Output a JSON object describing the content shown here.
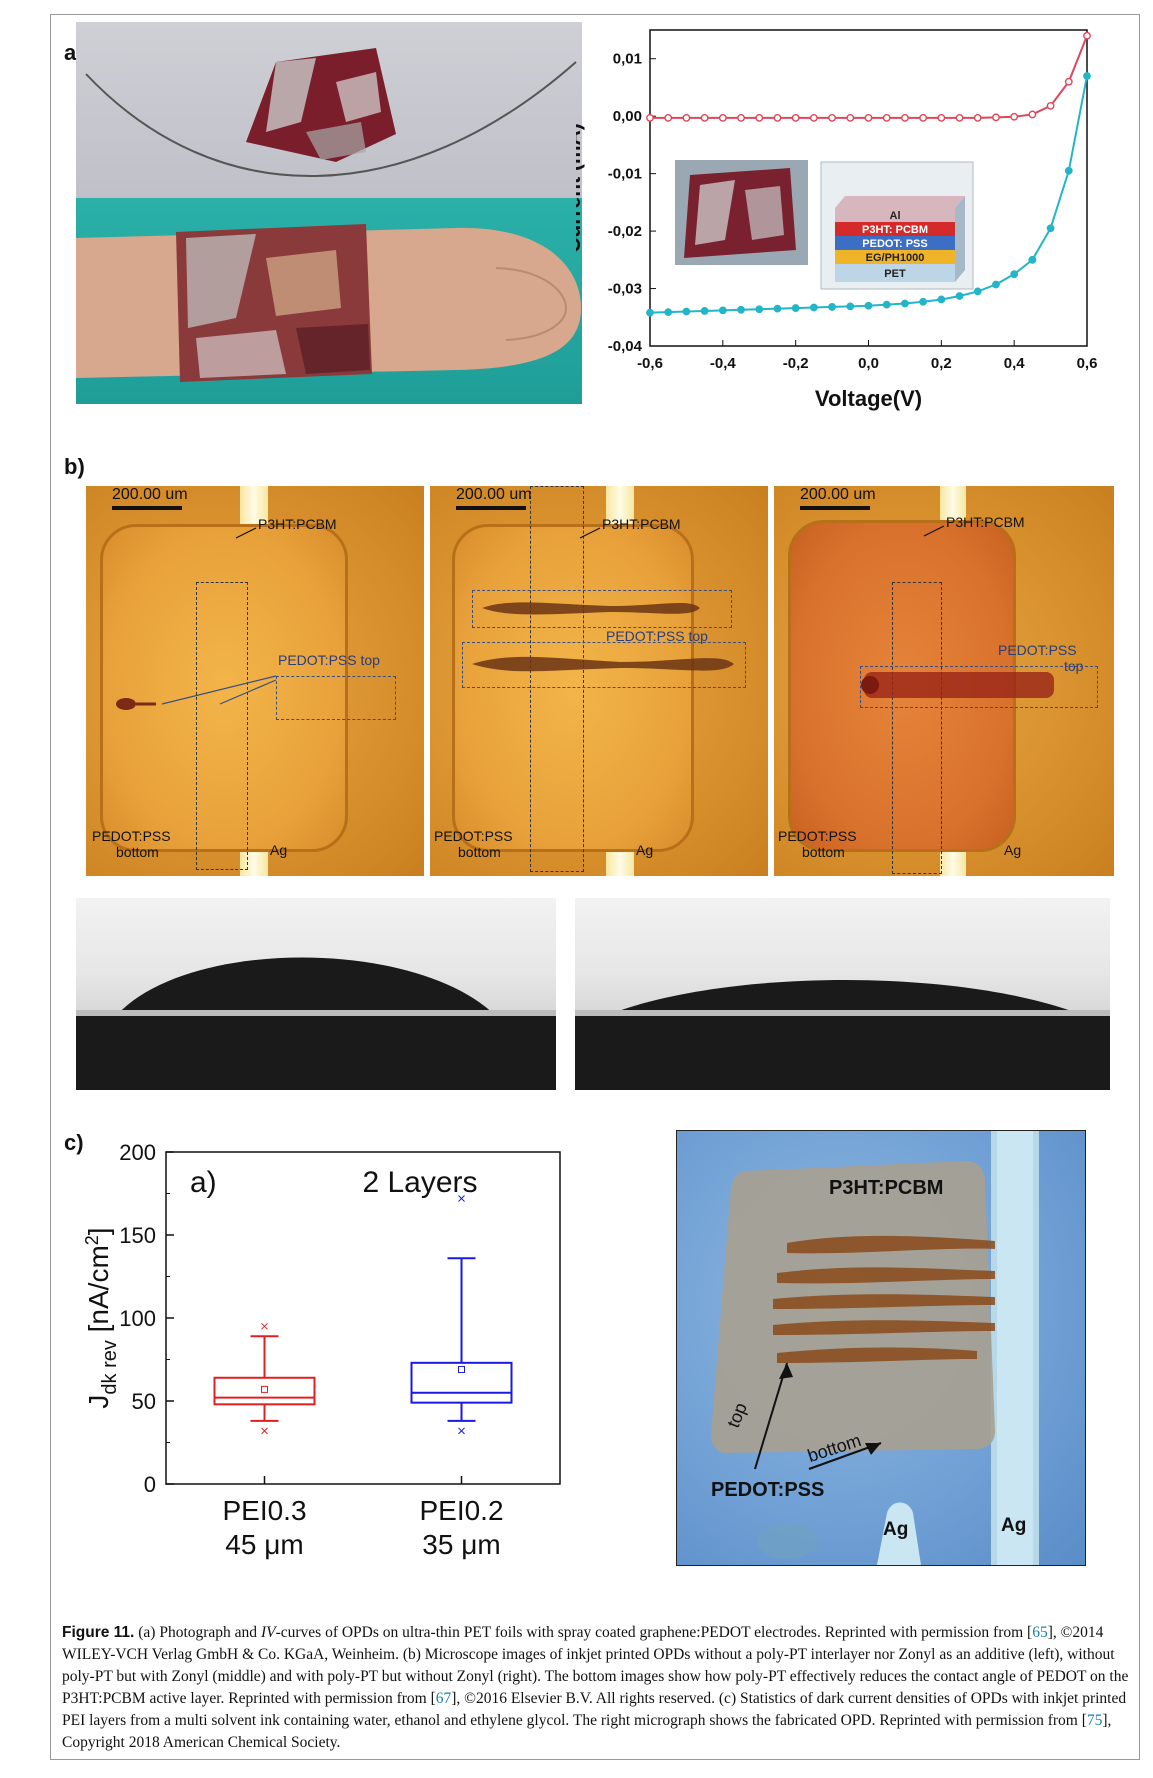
{
  "panels": {
    "a": "a)",
    "b": "b)",
    "c": "c)"
  },
  "iv_chart": {
    "chart_data": {
      "type": "line",
      "xlabel": "Voltage(V)",
      "ylabel": "Current (mA)",
      "xlim": [
        -0.6,
        0.6
      ],
      "ylim": [
        -0.04,
        0.015
      ],
      "x_ticks": [
        "-0,6",
        "-0,4",
        "-0,2",
        "0,0",
        "0,2",
        "0,4",
        "0,6"
      ],
      "y_ticks": [
        "0,01",
        "0,00",
        "-0,01",
        "-0,02",
        "-0,03",
        "-0,04"
      ],
      "series": [
        {
          "color": "#e0455a",
          "marker": "open-circle",
          "x": [
            -0.6,
            -0.55,
            -0.5,
            -0.45,
            -0.4,
            -0.35,
            -0.3,
            -0.25,
            -0.2,
            -0.15,
            -0.1,
            -0.05,
            0.0,
            0.05,
            0.1,
            0.15,
            0.2,
            0.25,
            0.3,
            0.35,
            0.4,
            0.45,
            0.5,
            0.55,
            0.6
          ],
          "y": [
            -0.0003,
            -0.0003,
            -0.0003,
            -0.0003,
            -0.0003,
            -0.0003,
            -0.0003,
            -0.0003,
            -0.0003,
            -0.0003,
            -0.0003,
            -0.0003,
            -0.0003,
            -0.0003,
            -0.0003,
            -0.0003,
            -0.0003,
            -0.0003,
            -0.0003,
            -0.0002,
            -0.0001,
            0.0003,
            0.0018,
            0.006,
            0.014
          ]
        },
        {
          "color": "#23b5c8",
          "marker": "filled-circle",
          "x": [
            -0.6,
            -0.55,
            -0.5,
            -0.45,
            -0.4,
            -0.35,
            -0.3,
            -0.25,
            -0.2,
            -0.15,
            -0.1,
            -0.05,
            0.0,
            0.05,
            0.1,
            0.15,
            0.2,
            0.25,
            0.3,
            0.35,
            0.4,
            0.45,
            0.5,
            0.55,
            0.6
          ],
          "y": [
            -0.0342,
            -0.0341,
            -0.034,
            -0.0339,
            -0.0338,
            -0.0337,
            -0.0336,
            -0.0335,
            -0.0334,
            -0.0333,
            -0.0332,
            -0.0331,
            -0.033,
            -0.0328,
            -0.0326,
            -0.0323,
            -0.0319,
            -0.0313,
            -0.0305,
            -0.0293,
            -0.0275,
            -0.025,
            -0.0195,
            -0.0095,
            0.007
          ]
        }
      ]
    },
    "stack_layers": [
      "Al",
      "P3HT: PCBM",
      "PEDOT: PSS",
      "EG/PH1000",
      "PET"
    ]
  },
  "micro": {
    "scale": "200.00 um",
    "p3ht": "P3HT:PCBM",
    "pedot_top": "PEDOT:PSS top",
    "pedot_top_1": "PEDOT:PSS",
    "pedot_top_2": "top",
    "pedot_bottom_1": "PEDOT:PSS",
    "pedot_bottom_2": "bottom",
    "ag": "Ag"
  },
  "box_chart": {
    "chart_data": {
      "type": "box",
      "title": "2 Layers",
      "inner_label": "a)",
      "ylabel_main": "J",
      "ylabel_sub": "dk rev",
      "ylabel_unit": "[nA/cm",
      "ylabel_sup": "2",
      "ylabel_close": "]",
      "ylim": [
        0,
        200
      ],
      "y_ticks": [
        "0",
        "50",
        "100",
        "150",
        "200"
      ],
      "categories": [
        {
          "line1": "PEI0.3",
          "line2": "45 μm",
          "color": "#e02020",
          "min": 38,
          "q1": 48,
          "median": 52,
          "q3": 64,
          "max": 89,
          "mean": 57,
          "outliers": [
            95,
            32
          ]
        },
        {
          "line1": "PEI0.2",
          "line2": "35 μm",
          "color": "#1a1ae0",
          "min": 38,
          "q1": 49,
          "median": 55,
          "q3": 73,
          "max": 136,
          "mean": 69,
          "outliers": [
            172,
            32
          ]
        }
      ]
    }
  },
  "opd_photo": {
    "p3ht": "P3HT:PCBM",
    "top": "top",
    "bottom": "bottom",
    "pedot": "PEDOT:PSS",
    "ag1": "Ag",
    "ag2": "Ag"
  },
  "caption": {
    "fig": "Figure 11.",
    "p1": " (a) Photograph and ",
    "iv": "IV",
    "p2": "-curves of OPDs on ultra-thin PET foils with spray coated graphene:PEDOT electrodes. Reprinted with permission from [",
    "r1": "65",
    "p3": "], ©2014 WILEY-VCH Verlag GmbH & Co. KGaA, Weinheim. (b) Microscope images of inkjet printed OPDs without a poly-PT interlayer nor Zonyl as an additive (left), without poly-PT but with Zonyl (middle) and with poly-PT but without Zonyl (right). The bottom images show how poly-PT effectively reduces the contact angle of PEDOT on the P3HT:PCBM active layer. Reprinted with permission from [",
    "r2": "67",
    "p4": "], ©2016 Elsevier B.V. All rights reserved. (c) Statistics of dark current densities of OPDs with inkjet printed PEI layers from a multi solvent ink containing water, ethanol and ethylene glycol. The right micrograph shows the fabricated OPD. Reprinted with permission from [",
    "r3": "75",
    "p5": "], Copyright 2018 American Chemical Society."
  }
}
